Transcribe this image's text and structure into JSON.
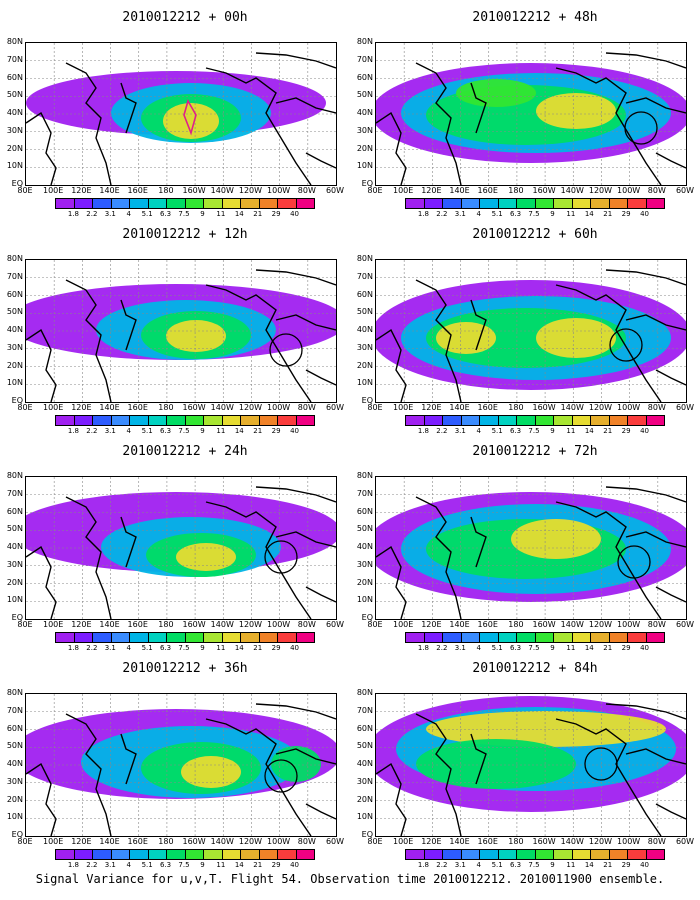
{
  "caption": "Signal Variance for u,v,T. Flight 54. Observation time 2010012212. 2010011900 ensemble.",
  "lat_labels": [
    "80N",
    "70N",
    "60N",
    "50N",
    "40N",
    "30N",
    "20N",
    "10N",
    "EQ"
  ],
  "lon_labels": [
    "80E",
    "100E",
    "120E",
    "140E",
    "160E",
    "180",
    "160W",
    "140W",
    "120W",
    "100W",
    "80W",
    "60W"
  ],
  "colorbar": {
    "labels": [
      "1.8",
      "2.2",
      "3.1",
      "4",
      "5.1",
      "6.3",
      "7.5",
      "9",
      "11",
      "14",
      "21",
      "29",
      "40"
    ],
    "colors": [
      "#a020f0",
      "#7c1dff",
      "#2d5cff",
      "#3a8cff",
      "#00b4e6",
      "#00d2c0",
      "#00dc64",
      "#32e632",
      "#a8e632",
      "#e6dc32",
      "#e6af2d",
      "#f08228",
      "#fa3c3c",
      "#f00082"
    ]
  },
  "panels": [
    {
      "title": "2010012212 + 00h"
    },
    {
      "title": "2010012212 + 48h"
    },
    {
      "title": "2010012212 + 12h"
    },
    {
      "title": "2010012212 + 60h"
    },
    {
      "title": "2010012212 + 24h"
    },
    {
      "title": "2010012212 + 72h"
    },
    {
      "title": "2010012212 + 36h"
    },
    {
      "title": "2010012212 + 84h"
    }
  ]
}
